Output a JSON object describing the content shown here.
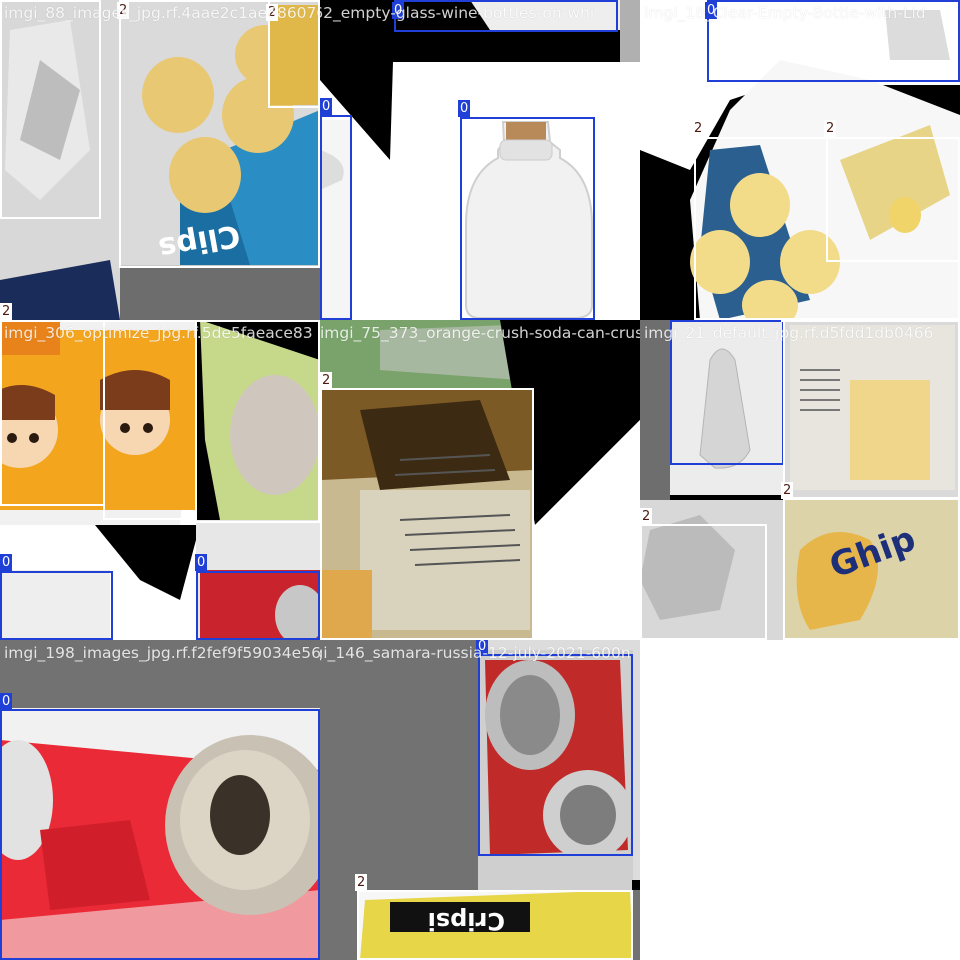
{
  "colors": {
    "class_0": "#1f3fd6",
    "class_2": "#ffffff",
    "gray_pad": "#727272"
  },
  "tiles": [
    {
      "filename": "imgi_88_images_jpg.rf.4aae2c1ae6860708d2"
    },
    {
      "filename": "imgi_62_empty-glass-wine-bottles-on-whi"
    },
    {
      "filename": "imgi_18_Clear-Empty-Bottle-with-Lid"
    },
    {
      "filename": "imgi_306_optimize_jpg.rf.5de5faeace83"
    },
    {
      "filename": "imgi_75_373_orange-crush-soda-can-crushed-2"
    },
    {
      "filename": "imgi_21_default_jpg.rf.d5fdd1db0466"
    },
    {
      "filename": "imgi_198_images_jpg.rf.f2fef9f59034e56"
    },
    {
      "filename": "imgi_146_samara-russia-12-july-2021-600n"
    }
  ],
  "labels": {
    "c0": "0",
    "c2": "2"
  }
}
